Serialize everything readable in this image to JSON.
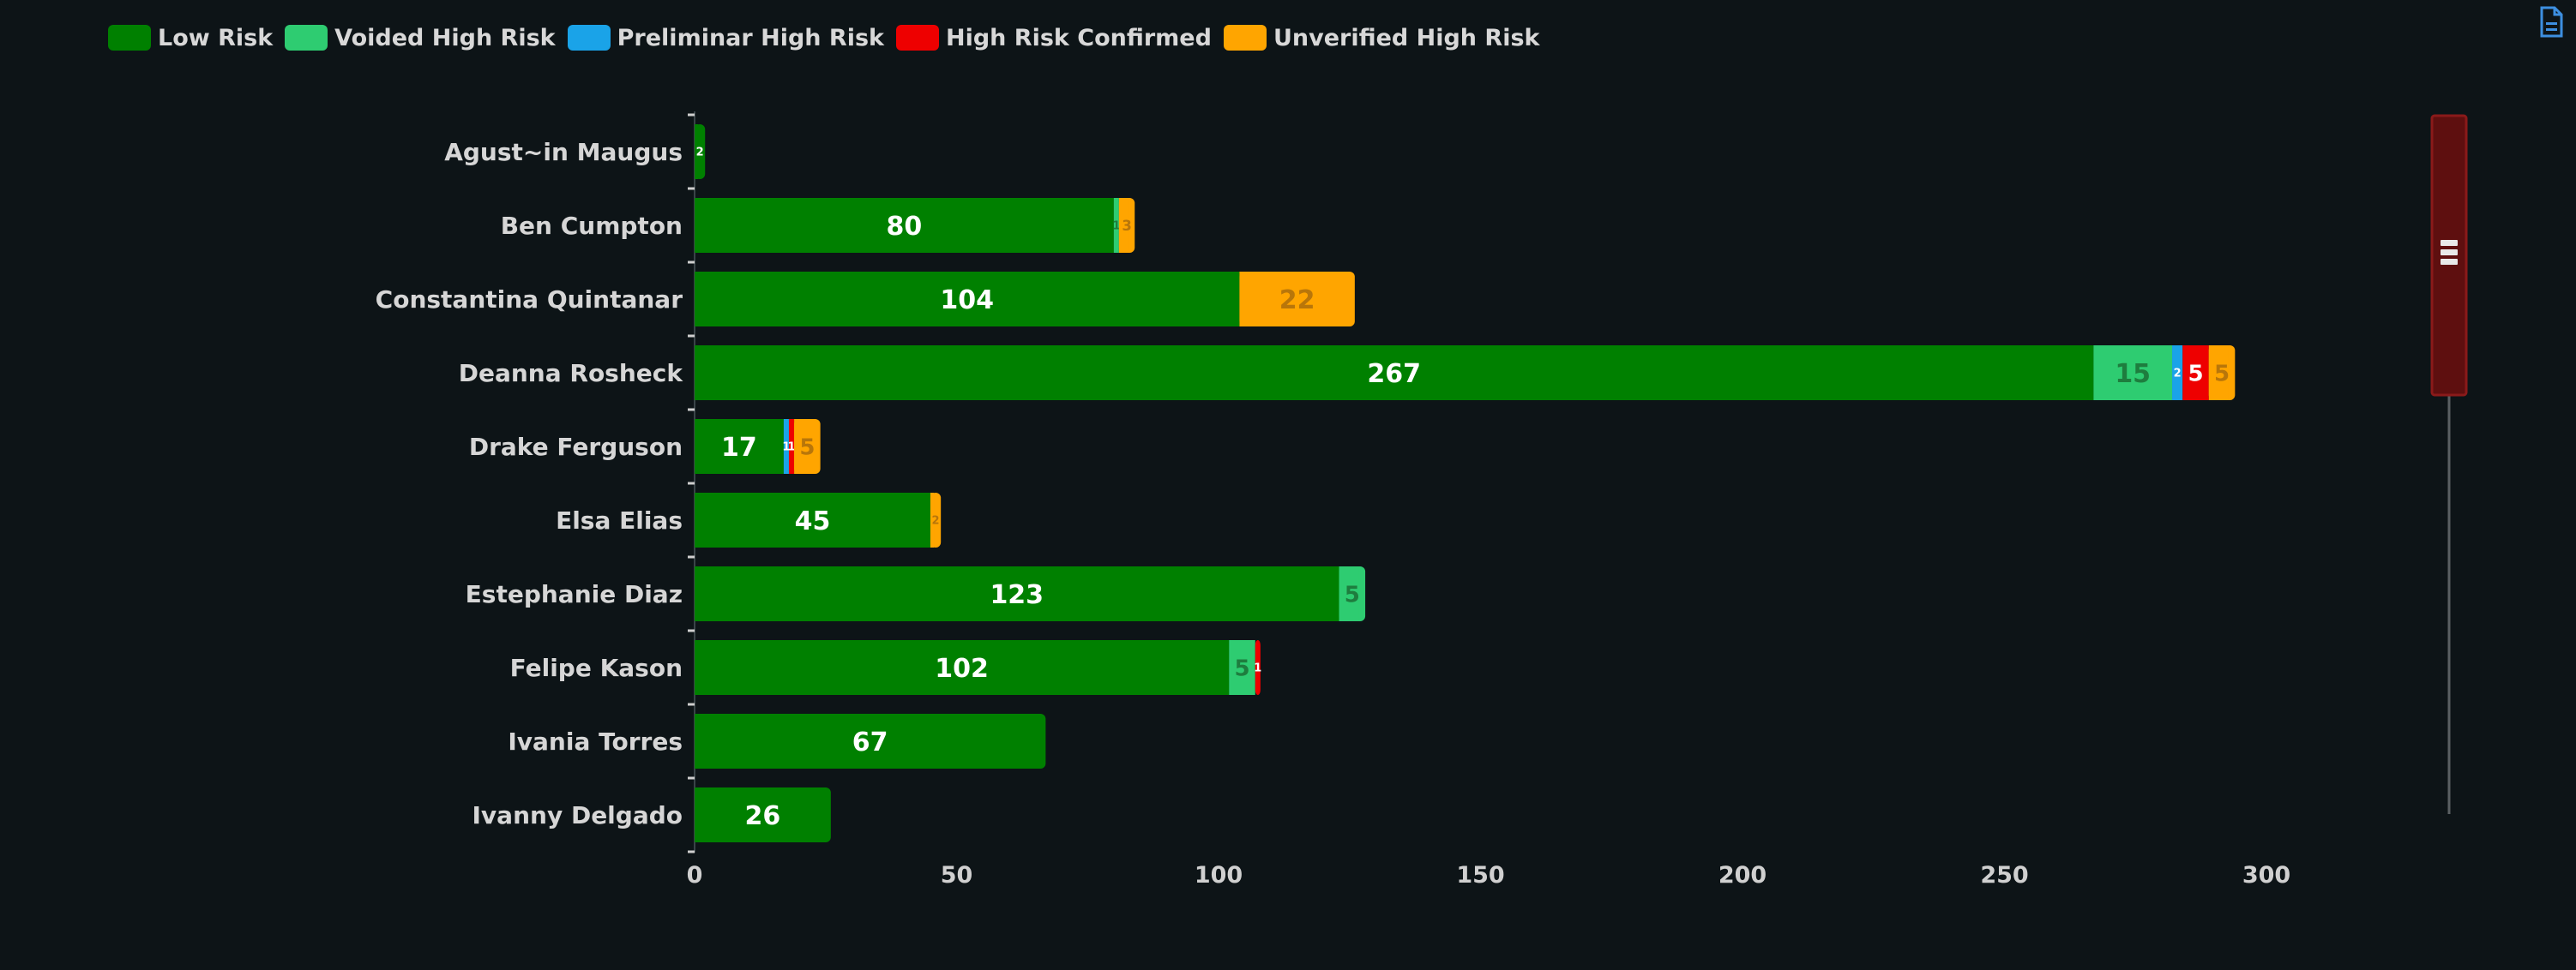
{
  "legend": [
    {
      "label": "Low Risk",
      "color": "#008000"
    },
    {
      "label": "Voided High Risk",
      "color": "#2ecc71"
    },
    {
      "label": "Preliminar High Risk",
      "color": "#1aa3e8"
    },
    {
      "label": "High Risk Confirmed",
      "color": "#ee0000"
    },
    {
      "label": "Unverified High Risk",
      "color": "#ffa500"
    }
  ],
  "toolbar": {
    "export_icon": "document-export-icon"
  },
  "chart_data": {
    "type": "bar",
    "orientation": "horizontal",
    "stacked": true,
    "categories": [
      "Agust~in Maugus",
      "Ben Cumpton",
      "Constantina Quintanar",
      "Deanna Rosheck",
      "Drake Ferguson",
      "Elsa Elias",
      "Estephanie Diaz",
      "Felipe Kason",
      "Ivania Torres",
      "Ivanny Delgado"
    ],
    "series": [
      {
        "name": "Low Risk",
        "color": "#008000",
        "values": [
          2,
          80,
          104,
          267,
          17,
          45,
          123,
          102,
          67,
          26
        ],
        "label_color": "#ffffff"
      },
      {
        "name": "Voided High Risk",
        "color": "#2ecc71",
        "values": [
          0,
          1,
          0,
          15,
          0,
          0,
          5,
          5,
          0,
          0
        ],
        "label_color": "#1e7d3e"
      },
      {
        "name": "Preliminar High Risk",
        "color": "#1aa3e8",
        "values": [
          0,
          0,
          0,
          2,
          1,
          0,
          0,
          0,
          0,
          0
        ],
        "label_color": "#ffffff"
      },
      {
        "name": "High Risk Confirmed",
        "color": "#ee0000",
        "values": [
          0,
          0,
          0,
          5,
          1,
          0,
          0,
          1,
          0,
          0
        ],
        "label_color": "#ffffff"
      },
      {
        "name": "Unverified High Risk",
        "color": "#ffa500",
        "values": [
          0,
          3,
          22,
          5,
          5,
          2,
          0,
          0,
          0,
          0
        ],
        "label_color": "#b8760a"
      }
    ],
    "xlim": [
      0,
      300
    ],
    "xticks": [
      0,
      50,
      100,
      150,
      200,
      250,
      300
    ],
    "grid": false,
    "legend_position": "top-left",
    "zoom_slider": {
      "range": [
        0,
        0.4
      ]
    }
  }
}
